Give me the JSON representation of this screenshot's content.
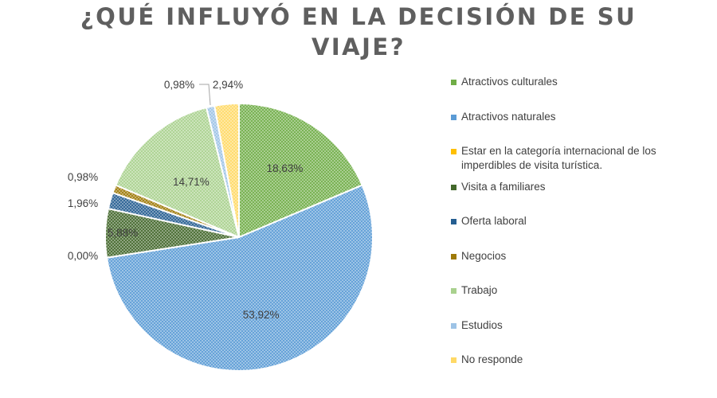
{
  "chart_data": {
    "type": "pie",
    "title": "¿QUÉ INFLUYÓ EN LA DECISIÓN DE SU VIAJE?",
    "legend_position": "right",
    "slices": [
      {
        "name": "Atractivos culturales",
        "value": 18.63,
        "label": "18,63%",
        "color": "#70ad47"
      },
      {
        "name": "Atractivos naturales",
        "value": 53.92,
        "label": "53,92%",
        "color": "#5b9bd5"
      },
      {
        "name": "Estar en la categoría internacional de los imperdibles de visita turística.",
        "value": 0.0,
        "label": "0,00%",
        "color": "#ffc000"
      },
      {
        "name": "Visita a familiares",
        "value": 5.88,
        "label": "5,88%",
        "color": "#43682b"
      },
      {
        "name": "Oferta laboral",
        "value": 1.96,
        "label": "1,96%",
        "color": "#255e91"
      },
      {
        "name": "Negocios",
        "value": 0.98,
        "label": "0,98%",
        "color": "#9e7a07"
      },
      {
        "name": "Trabajo",
        "value": 14.71,
        "label": "14,71%",
        "color": "#a9d18e"
      },
      {
        "name": "Estudios",
        "value": 0.98,
        "label": "0,98%",
        "color": "#9dc3e6"
      },
      {
        "name": "No responde",
        "value": 2.94,
        "label": "2,94%",
        "color": "#ffd966"
      }
    ]
  }
}
